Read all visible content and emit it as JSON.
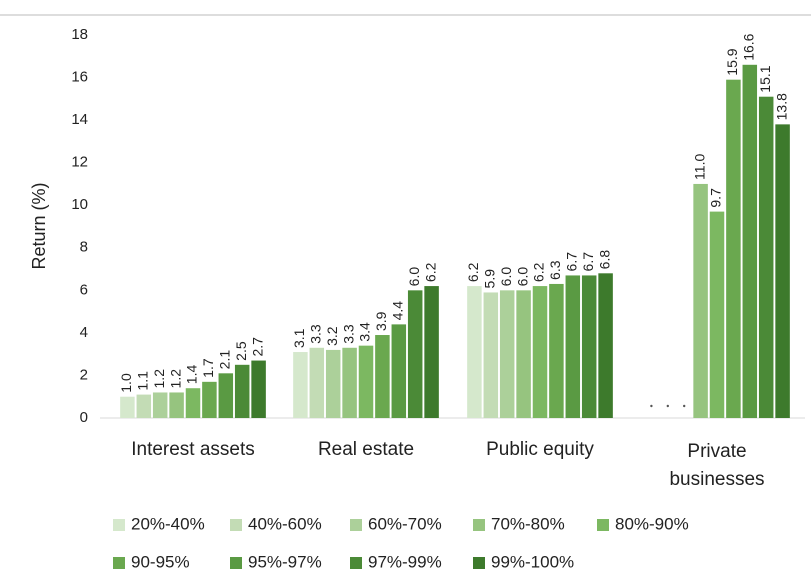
{
  "chart_data": {
    "type": "bar",
    "y_label": "Return (%)",
    "categories": [
      "Interest assets",
      "Real estate",
      "Public equity",
      "Private businesses"
    ],
    "ylim": [
      0,
      18
    ],
    "yticks": [
      0,
      2,
      4,
      6,
      8,
      10,
      12,
      14,
      16,
      18
    ],
    "grid": false,
    "legend": "bottom",
    "series": [
      {
        "name": "20%-40%",
        "color": "#d5e8cc",
        "values": [
          1.0,
          3.1,
          6.2,
          null
        ],
        "value_labels": [
          "1.0",
          "3.1",
          "6.2",
          null
        ]
      },
      {
        "name": "40%-60%",
        "color": "#c3dcb5",
        "values": [
          1.1,
          3.3,
          5.9,
          null
        ],
        "value_labels": [
          "1.1",
          "3.3",
          "5.9",
          null
        ]
      },
      {
        "name": "60%-70%",
        "color": "#acd09a",
        "values": [
          1.2,
          3.2,
          6.0,
          null
        ],
        "value_labels": [
          "1.2",
          "3.2",
          "6.0",
          null
        ]
      },
      {
        "name": "70%-80%",
        "color": "#96c47f",
        "values": [
          1.2,
          3.3,
          6.0,
          11.0
        ],
        "value_labels": [
          "1.2",
          "3.3",
          "6.0",
          "11.0"
        ]
      },
      {
        "name": "80%-90%",
        "color": "#7cb861",
        "values": [
          1.4,
          3.4,
          6.2,
          9.7
        ],
        "value_labels": [
          "1.4",
          "3.4",
          "6.2",
          "9.7"
        ]
      },
      {
        "name": "90-95%",
        "color": "#6aa84f",
        "values": [
          1.7,
          3.9,
          6.3,
          15.9
        ],
        "value_labels": [
          "1.7",
          "3.9",
          "6.3",
          "15.9"
        ]
      },
      {
        "name": "95%-97%",
        "color": "#5a9a43",
        "values": [
          2.1,
          4.4,
          6.7,
          16.6
        ],
        "value_labels": [
          "2.1",
          "4.4",
          "6.7",
          "16.6"
        ]
      },
      {
        "name": "97%-99%",
        "color": "#4b8a37",
        "values": [
          2.5,
          6.0,
          6.7,
          15.1
        ],
        "value_labels": [
          "2.5",
          "6.0",
          "6.7",
          "15.1"
        ]
      },
      {
        "name": "99%-100%",
        "color": "#3d7a2c",
        "values": [
          2.7,
          6.2,
          6.8,
          13.8
        ],
        "value_labels": [
          "2.7",
          "6.2",
          "6.8",
          "13.8"
        ]
      }
    ]
  }
}
